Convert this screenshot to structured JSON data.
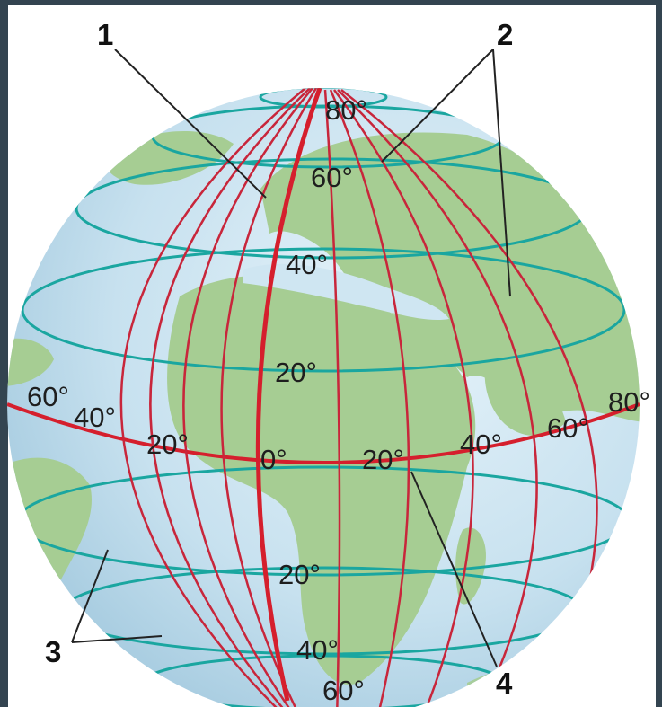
{
  "colors": {
    "frame": "#334450",
    "ocean": "#cfe6f2",
    "land": "#a6cd93",
    "meridian": "#c8263b",
    "prime_meridian": "#d51f2d",
    "parallel": "#1aa6a0",
    "equator": "#d51f2d",
    "text": "#1e1e1e"
  },
  "callouts": {
    "c1": "1",
    "c2": "2",
    "c3": "3",
    "c4": "4"
  },
  "latitude_labels": {
    "n80": "80°",
    "n60": "60°",
    "n40": "40°",
    "n20": "20°",
    "s20": "20°",
    "s40": "40°",
    "s60": "60°"
  },
  "longitude_labels": {
    "w60": "60°",
    "w40": "40°",
    "w20": "20°",
    "zero": "0°",
    "e20": "20°",
    "e40": "40°",
    "e60": "60°",
    "e80": "80°"
  }
}
